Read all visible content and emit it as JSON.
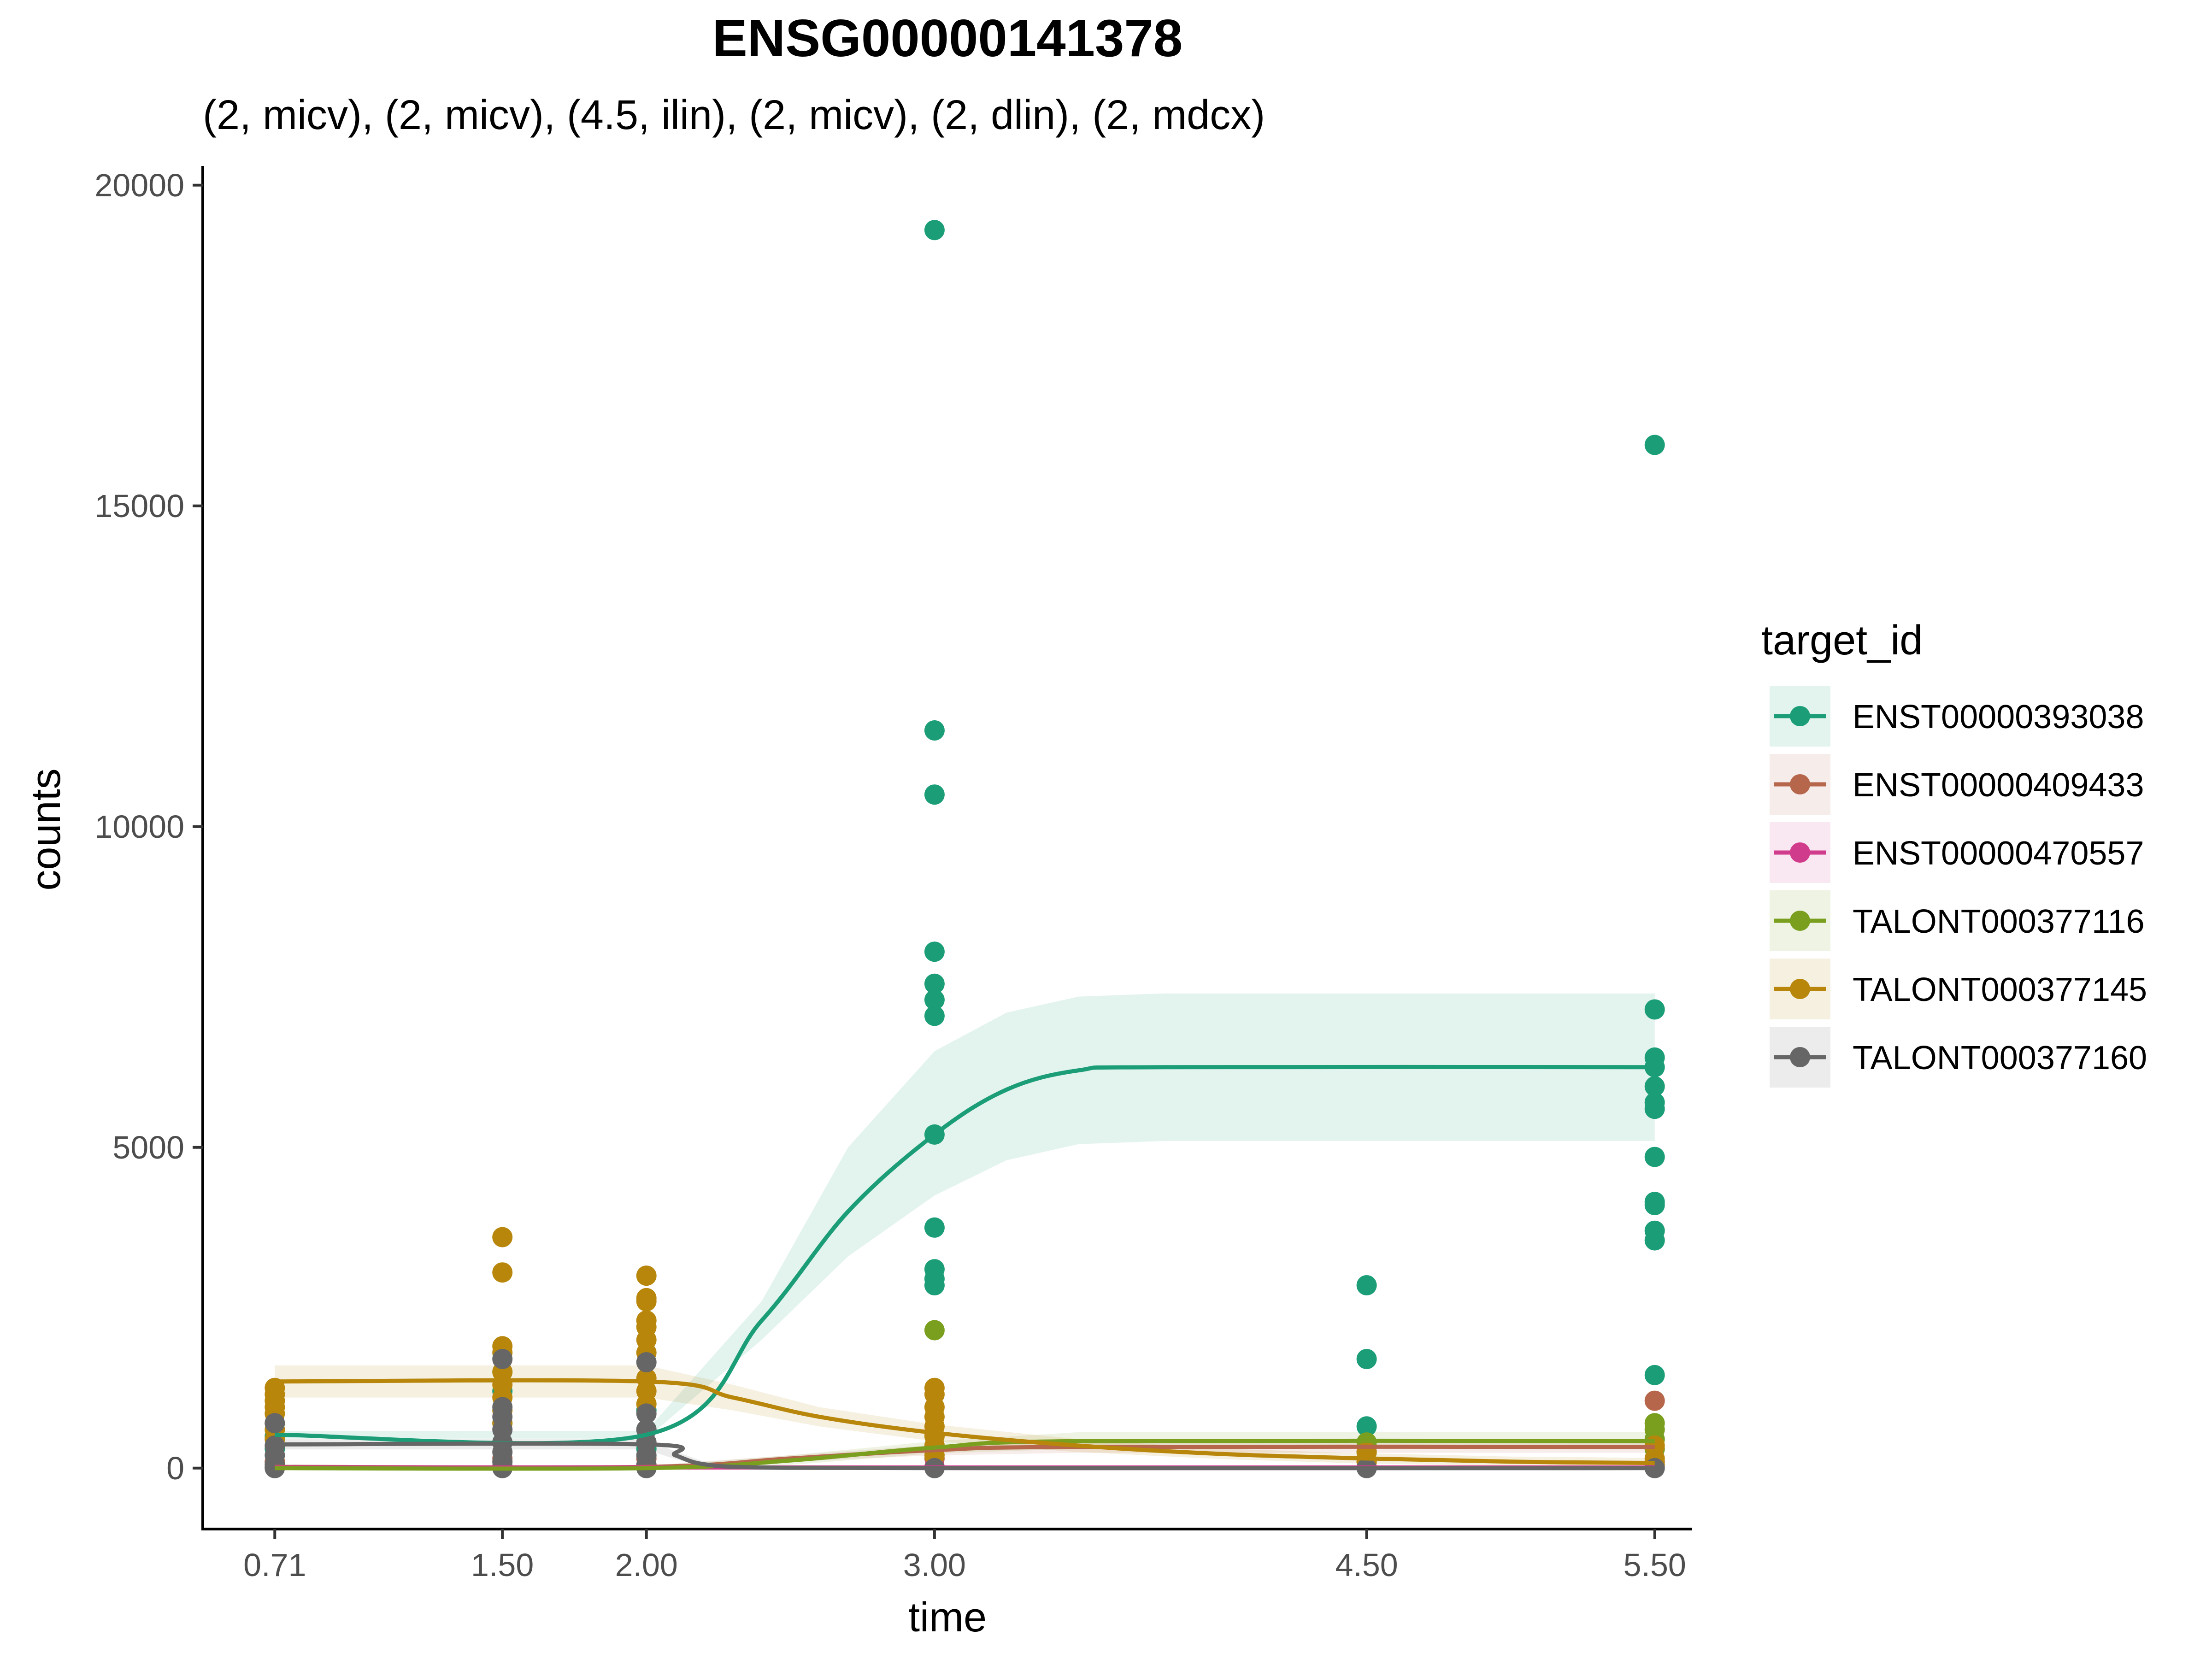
{
  "chart_data": {
    "type": "scatter",
    "title": "ENSG00000141378",
    "subtitle": "(2, micv), (2, micv), (4.5, ilin), (2, micv), (2, dlin), (2, mdcx)",
    "xlabel": "time",
    "ylabel": "counts",
    "xlim": [
      0.46,
      5.63
    ],
    "ylim": [
      -950,
      20300
    ],
    "x_ticks": [
      0.71,
      1.5,
      2.0,
      3.0,
      4.5,
      5.5
    ],
    "x_tick_labels": [
      "0.71",
      "1.50",
      "2.00",
      "3.00",
      "4.50",
      "5.50"
    ],
    "y_ticks": [
      0,
      5000,
      10000,
      15000,
      20000
    ],
    "y_tick_labels": [
      "0",
      "5000",
      "10000",
      "15000",
      "20000"
    ],
    "grid": false,
    "legend": {
      "title": "target_id",
      "placement": "right"
    },
    "series": [
      {
        "name": "ENST00000393038",
        "color": "#1B9E77",
        "points": [
          [
            0.71,
            500
          ],
          [
            0.71,
            300
          ],
          [
            0.71,
            100
          ],
          [
            1.5,
            1500
          ],
          [
            1.5,
            1200
          ],
          [
            1.5,
            700
          ],
          [
            1.5,
            400
          ],
          [
            2.0,
            900
          ],
          [
            2.0,
            600
          ],
          [
            2.0,
            300
          ],
          [
            3.0,
            19300
          ],
          [
            3.0,
            11500
          ],
          [
            3.0,
            10500
          ],
          [
            3.0,
            8050
          ],
          [
            3.0,
            7550
          ],
          [
            3.0,
            7300
          ],
          [
            3.0,
            7050
          ],
          [
            3.0,
            5200
          ],
          [
            3.0,
            3750
          ],
          [
            3.0,
            3100
          ],
          [
            3.0,
            2950
          ],
          [
            3.0,
            2850
          ],
          [
            4.5,
            2850
          ],
          [
            4.5,
            1700
          ],
          [
            4.5,
            650
          ],
          [
            5.5,
            15950
          ],
          [
            5.5,
            7150
          ],
          [
            5.5,
            6400
          ],
          [
            5.5,
            6250
          ],
          [
            5.5,
            5950
          ],
          [
            5.5,
            5700
          ],
          [
            5.5,
            5600
          ],
          [
            5.5,
            4850
          ],
          [
            5.5,
            4150
          ],
          [
            5.5,
            4100
          ],
          [
            5.5,
            3700
          ],
          [
            5.5,
            3550
          ],
          [
            5.5,
            1450
          ]
        ],
        "fit": [
          [
            0.71,
            520
          ],
          [
            2.0,
            520
          ],
          [
            2.4,
            2300
          ],
          [
            2.7,
            4000
          ],
          [
            3.0,
            5200
          ],
          [
            3.25,
            5900
          ],
          [
            3.5,
            6200
          ],
          [
            3.8,
            6250
          ],
          [
            5.5,
            6250
          ]
        ],
        "band_upper": [
          [
            0.71,
            580
          ],
          [
            2.0,
            580
          ],
          [
            2.4,
            2600
          ],
          [
            2.7,
            5000
          ],
          [
            3.0,
            6500
          ],
          [
            3.25,
            7100
          ],
          [
            3.5,
            7350
          ],
          [
            3.8,
            7400
          ],
          [
            5.5,
            7400
          ]
        ],
        "band_lower": [
          [
            0.71,
            460
          ],
          [
            2.0,
            460
          ],
          [
            2.4,
            2000
          ],
          [
            2.7,
            3300
          ],
          [
            3.0,
            4250
          ],
          [
            3.25,
            4800
          ],
          [
            3.5,
            5050
          ],
          [
            3.8,
            5100
          ],
          [
            5.5,
            5100
          ]
        ]
      },
      {
        "name": "ENST00000409433",
        "color": "#B5664B",
        "points": [
          [
            0.71,
            100
          ],
          [
            0.71,
            20
          ],
          [
            1.5,
            150
          ],
          [
            1.5,
            30
          ],
          [
            2.0,
            150
          ],
          [
            2.0,
            30
          ],
          [
            3.0,
            300
          ],
          [
            3.0,
            150
          ],
          [
            4.5,
            250
          ],
          [
            4.5,
            100
          ],
          [
            5.5,
            1050
          ],
          [
            5.5,
            300
          ],
          [
            5.5,
            100
          ]
        ],
        "fit": [
          [
            0.71,
            20
          ],
          [
            2.0,
            20
          ],
          [
            2.5,
            150
          ],
          [
            3.0,
            280
          ],
          [
            3.5,
            330
          ],
          [
            5.5,
            330
          ]
        ],
        "band_upper": [
          [
            0.71,
            40
          ],
          [
            2.0,
            40
          ],
          [
            2.5,
            200
          ],
          [
            3.0,
            360
          ],
          [
            3.5,
            420
          ],
          [
            5.5,
            420
          ]
        ],
        "band_lower": [
          [
            0.71,
            5
          ],
          [
            2.0,
            5
          ],
          [
            2.5,
            100
          ],
          [
            3.0,
            200
          ],
          [
            3.5,
            240
          ],
          [
            5.5,
            240
          ]
        ]
      },
      {
        "name": "ENST00000470557",
        "color": "#D13B8C",
        "points": [
          [
            0.71,
            5
          ],
          [
            1.5,
            5
          ],
          [
            2.0,
            5
          ],
          [
            3.0,
            20
          ],
          [
            4.5,
            10
          ],
          [
            5.5,
            20
          ]
        ],
        "fit": [
          [
            0.71,
            10
          ],
          [
            5.5,
            10
          ]
        ],
        "band_upper": [
          [
            0.71,
            30
          ],
          [
            5.5,
            30
          ]
        ],
        "band_lower": [
          [
            0.71,
            0
          ],
          [
            5.5,
            0
          ]
        ]
      },
      {
        "name": "TALONT000377116",
        "color": "#7A9F1F",
        "points": [
          [
            0.71,
            10
          ],
          [
            1.5,
            10
          ],
          [
            2.0,
            10
          ],
          [
            3.0,
            2150
          ],
          [
            3.0,
            500
          ],
          [
            3.0,
            350
          ],
          [
            4.5,
            400
          ],
          [
            4.5,
            250
          ],
          [
            5.5,
            700
          ],
          [
            5.5,
            600
          ],
          [
            5.5,
            450
          ],
          [
            5.5,
            300
          ]
        ],
        "fit": [
          [
            0.71,
            0
          ],
          [
            2.0,
            0
          ],
          [
            2.5,
            120
          ],
          [
            3.0,
            320
          ],
          [
            3.5,
            420
          ],
          [
            5.5,
            420
          ]
        ],
        "band_upper": [
          [
            0.71,
            30
          ],
          [
            2.0,
            30
          ],
          [
            2.5,
            200
          ],
          [
            3.0,
            420
          ],
          [
            3.5,
            560
          ],
          [
            5.5,
            560
          ]
        ],
        "band_lower": [
          [
            0.71,
            0
          ],
          [
            2.0,
            0
          ],
          [
            2.5,
            50
          ],
          [
            3.0,
            230
          ],
          [
            3.5,
            300
          ],
          [
            5.5,
            300
          ]
        ]
      },
      {
        "name": "TALONT000377145",
        "color": "#B8860B",
        "points": [
          [
            0.71,
            1250
          ],
          [
            0.71,
            1150
          ],
          [
            0.71,
            1050
          ],
          [
            0.71,
            950
          ],
          [
            0.71,
            850
          ],
          [
            0.71,
            700
          ],
          [
            0.71,
            600
          ],
          [
            0.71,
            450
          ],
          [
            1.5,
            3600
          ],
          [
            1.5,
            3050
          ],
          [
            1.5,
            1900
          ],
          [
            1.5,
            1800
          ],
          [
            1.5,
            1500
          ],
          [
            1.5,
            1300
          ],
          [
            1.5,
            1100
          ],
          [
            1.5,
            900
          ],
          [
            1.5,
            700
          ],
          [
            2.0,
            3000
          ],
          [
            2.0,
            2650
          ],
          [
            2.0,
            2600
          ],
          [
            2.0,
            2300
          ],
          [
            2.0,
            2200
          ],
          [
            2.0,
            2000
          ],
          [
            2.0,
            1800
          ],
          [
            2.0,
            1400
          ],
          [
            2.0,
            1200
          ],
          [
            2.0,
            1000
          ],
          [
            3.0,
            1250
          ],
          [
            3.0,
            1150
          ],
          [
            3.0,
            950
          ],
          [
            3.0,
            800
          ],
          [
            3.0,
            650
          ],
          [
            3.0,
            500
          ],
          [
            3.0,
            350
          ],
          [
            3.0,
            200
          ],
          [
            4.5,
            250
          ],
          [
            4.5,
            100
          ],
          [
            5.5,
            350
          ],
          [
            5.5,
            150
          ],
          [
            5.5,
            50
          ]
        ],
        "fit": [
          [
            0.71,
            1350
          ],
          [
            2.0,
            1350
          ],
          [
            2.3,
            1100
          ],
          [
            2.6,
            800
          ],
          [
            3.0,
            550
          ],
          [
            3.5,
            350
          ],
          [
            4.0,
            220
          ],
          [
            4.5,
            150
          ],
          [
            5.0,
            100
          ],
          [
            5.5,
            80
          ]
        ],
        "band_upper": [
          [
            0.71,
            1600
          ],
          [
            2.0,
            1600
          ],
          [
            2.3,
            1300
          ],
          [
            2.6,
            950
          ],
          [
            3.0,
            680
          ],
          [
            3.5,
            450
          ],
          [
            4.0,
            300
          ],
          [
            4.5,
            230
          ],
          [
            5.0,
            180
          ],
          [
            5.5,
            160
          ]
        ],
        "band_lower": [
          [
            0.71,
            1100
          ],
          [
            2.0,
            1100
          ],
          [
            2.3,
            900
          ],
          [
            2.6,
            650
          ],
          [
            3.0,
            420
          ],
          [
            3.5,
            250
          ],
          [
            4.0,
            140
          ],
          [
            4.5,
            70
          ],
          [
            5.0,
            30
          ],
          [
            5.5,
            10
          ]
        ]
      },
      {
        "name": "TALONT000377160",
        "color": "#666666",
        "points": [
          [
            0.71,
            700
          ],
          [
            0.71,
            350
          ],
          [
            0.71,
            200
          ],
          [
            0.71,
            50
          ],
          [
            0.71,
            0
          ],
          [
            1.5,
            1700
          ],
          [
            1.5,
            950
          ],
          [
            1.5,
            800
          ],
          [
            1.5,
            600
          ],
          [
            1.5,
            400
          ],
          [
            1.5,
            250
          ],
          [
            1.5,
            100
          ],
          [
            1.5,
            0
          ],
          [
            2.0,
            1650
          ],
          [
            2.0,
            850
          ],
          [
            2.0,
            600
          ],
          [
            2.0,
            400
          ],
          [
            2.0,
            200
          ],
          [
            2.0,
            50
          ],
          [
            2.0,
            0
          ],
          [
            3.0,
            0
          ],
          [
            4.5,
            0
          ],
          [
            5.5,
            0
          ]
        ],
        "fit": [
          [
            0.71,
            370
          ],
          [
            2.0,
            370
          ],
          [
            2.1,
            200
          ],
          [
            2.2,
            60
          ],
          [
            2.4,
            10
          ],
          [
            3.0,
            0
          ],
          [
            5.5,
            0
          ]
        ],
        "band_upper": [
          [
            0.71,
            450
          ],
          [
            2.0,
            450
          ],
          [
            2.1,
            260
          ],
          [
            2.2,
            100
          ],
          [
            2.4,
            30
          ],
          [
            3.0,
            15
          ],
          [
            5.5,
            15
          ]
        ],
        "band_lower": [
          [
            0.71,
            290
          ],
          [
            2.0,
            290
          ],
          [
            2.1,
            140
          ],
          [
            2.2,
            20
          ],
          [
            2.4,
            0
          ],
          [
            3.0,
            0
          ],
          [
            5.5,
            0
          ]
        ]
      }
    ]
  }
}
